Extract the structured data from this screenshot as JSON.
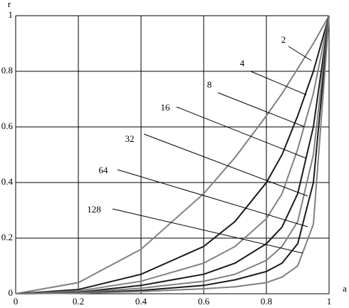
{
  "chart_data": {
    "type": "line",
    "x_label": "a",
    "y_label": "r",
    "x": [
      0,
      0.2,
      0.4,
      0.6,
      0.7,
      0.8,
      0.85,
      0.9,
      0.95,
      1
    ],
    "series": [
      {
        "name": "2",
        "color": "#808080",
        "values": [
          0,
          0.04,
          0.16,
          0.36,
          0.49,
          0.64,
          0.72,
          0.81,
          0.9,
          1
        ]
      },
      {
        "name": "4",
        "color": "#1a1a1a",
        "values": [
          0,
          0.015,
          0.07,
          0.17,
          0.26,
          0.4,
          0.5,
          0.64,
          0.8,
          1
        ]
      },
      {
        "name": "8",
        "color": "#808080",
        "values": [
          0,
          0.01,
          0.045,
          0.11,
          0.17,
          0.27,
          0.36,
          0.52,
          0.72,
          1
        ]
      },
      {
        "name": "16",
        "color": "#1a1a1a",
        "values": [
          0,
          0.005,
          0.03,
          0.07,
          0.11,
          0.18,
          0.24,
          0.36,
          0.6,
          1
        ]
      },
      {
        "name": "32",
        "color": "#808080",
        "values": [
          0,
          0.004,
          0.02,
          0.045,
          0.07,
          0.12,
          0.17,
          0.26,
          0.5,
          1
        ]
      },
      {
        "name": "64",
        "color": "#1a1a1a",
        "values": [
          0,
          0.003,
          0.012,
          0.03,
          0.05,
          0.08,
          0.11,
          0.18,
          0.4,
          1
        ]
      },
      {
        "name": "128",
        "color": "#808080",
        "values": [
          0,
          0.002,
          0.008,
          0.018,
          0.025,
          0.04,
          0.06,
          0.1,
          0.25,
          1
        ]
      }
    ],
    "xlim": [
      0,
      1
    ],
    "ylim": [
      0,
      1
    ],
    "xticks": [
      0,
      0.2,
      0.4,
      0.6,
      0.8,
      1
    ],
    "yticks": [
      0,
      0.2,
      0.4,
      0.6,
      0.8,
      1
    ],
    "grid": true
  }
}
